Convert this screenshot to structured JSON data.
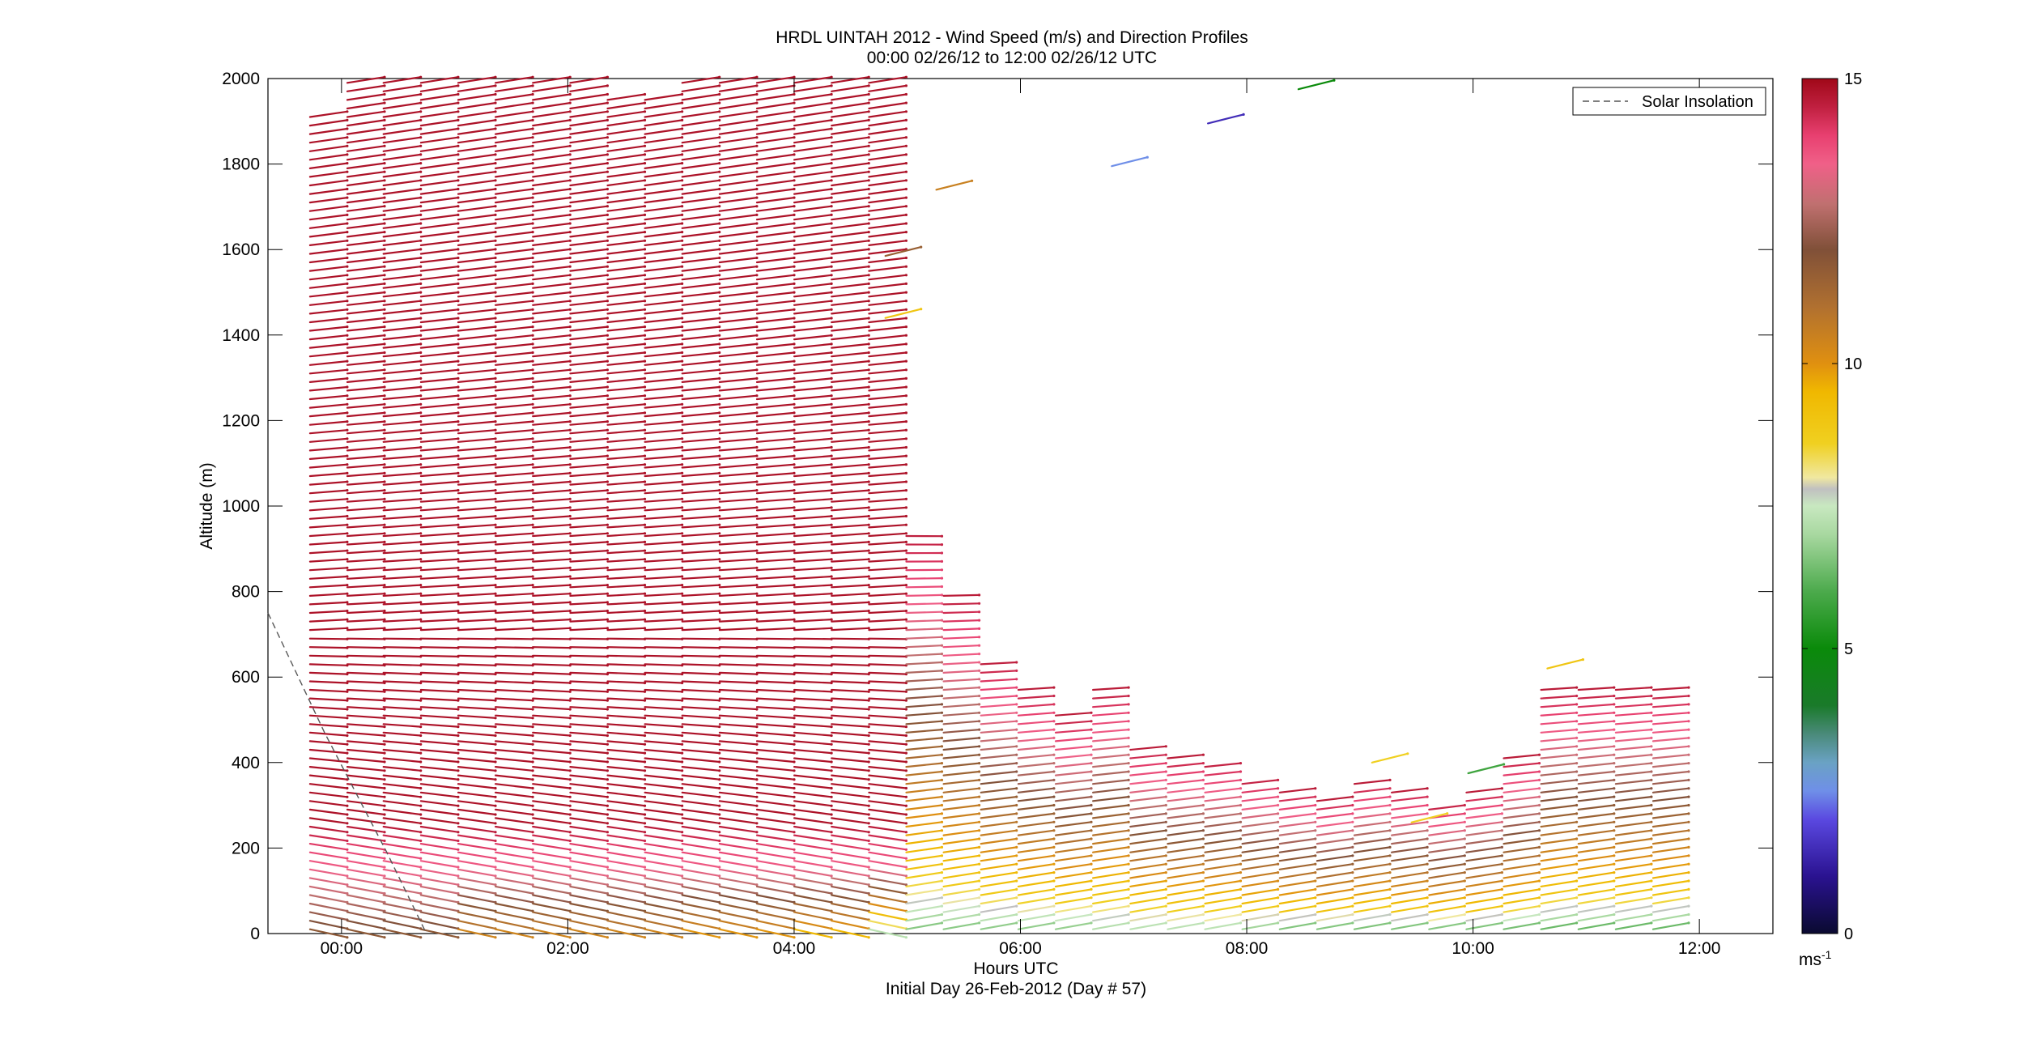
{
  "title_line1": "HRDL UINTAH 2012 - Wind Speed (m/s) and Direction Profiles",
  "title_line2": "00:00 02/26/12 to 12:00 02/26/12  UTC",
  "xlabel": "Hours UTC",
  "xlabel2": "Initial Day 26-Feb-2012 (Day # 57)",
  "ylabel": "Altitude (m)",
  "legend_label": "Solar Insolation",
  "colorbar_unit": "ms",
  "colorbar_unit_sup": "-1",
  "chart_data": {
    "type": "wind-barb-profile",
    "x_unit": "hours UTC",
    "xlim": [
      -0.65,
      12.65
    ],
    "ylim": [
      0,
      2000
    ],
    "clim": [
      0,
      15
    ],
    "x_ticks": [
      0,
      2,
      4,
      6,
      8,
      10,
      12
    ],
    "x_tick_labels": [
      "00:00",
      "02:00",
      "04:00",
      "06:00",
      "08:00",
      "10:00",
      "12:00"
    ],
    "y_ticks": [
      0,
      200,
      400,
      600,
      800,
      1000,
      1200,
      1400,
      1600,
      1800,
      2000
    ],
    "colorbar_ticks": [
      0,
      5,
      10,
      15
    ],
    "legend_position": "top-right",
    "grid": false,
    "colormap": [
      [
        0,
        "#0a0a30"
      ],
      [
        1,
        "#2a1290"
      ],
      [
        2,
        "#5a48e0"
      ],
      [
        2.5,
        "#6f8fe8"
      ],
      [
        3,
        "#6aa2c4"
      ],
      [
        3.5,
        "#4a8a7a"
      ],
      [
        4,
        "#1a7a2a"
      ],
      [
        5,
        "#0a8a0a"
      ],
      [
        6,
        "#4caa4c"
      ],
      [
        7,
        "#a8d8a0"
      ],
      [
        7.5,
        "#c8e8c0"
      ],
      [
        7.8,
        "#c0c0c0"
      ],
      [
        8,
        "#f0e8a0"
      ],
      [
        8.6,
        "#f0d020"
      ],
      [
        9.5,
        "#f0b800"
      ],
      [
        10,
        "#e09010"
      ],
      [
        11,
        "#b07030"
      ],
      [
        12,
        "#805038"
      ],
      [
        12.8,
        "#c07070"
      ],
      [
        13.5,
        "#f06088"
      ],
      [
        14,
        "#e84070"
      ],
      [
        14.5,
        "#c02040"
      ],
      [
        15,
        "#a00818"
      ]
    ],
    "solar_insolation": {
      "x": [
        -0.65,
        -0.15,
        0.4,
        0.75
      ],
      "y": [
        750,
        470,
        190,
        0
      ]
    },
    "profiles": [
      {
        "time": -0.15,
        "top": 1920,
        "surface_speed": 11.5
      },
      {
        "time": 0.18,
        "top": 1990,
        "surface_speed": 11.5
      },
      {
        "time": 0.5,
        "top": 1990,
        "surface_speed": 11.5
      },
      {
        "time": 0.83,
        "top": 1990,
        "surface_speed": 11.5
      },
      {
        "time": 1.16,
        "top": 1990,
        "surface_speed": 10
      },
      {
        "time": 1.49,
        "top": 1990,
        "surface_speed": 10
      },
      {
        "time": 1.82,
        "top": 1990,
        "surface_speed": 10
      },
      {
        "time": 2.15,
        "top": 1990,
        "surface_speed": 10
      },
      {
        "time": 2.48,
        "top": 1950,
        "surface_speed": 10
      },
      {
        "time": 2.81,
        "top": 1950,
        "surface_speed": 10
      },
      {
        "time": 3.14,
        "top": 1990,
        "surface_speed": 9.5
      },
      {
        "time": 3.47,
        "top": 1990,
        "surface_speed": 9.5
      },
      {
        "time": 3.8,
        "top": 1990,
        "surface_speed": 9.5
      },
      {
        "time": 4.13,
        "top": 1990,
        "surface_speed": 9
      },
      {
        "time": 4.46,
        "top": 1990,
        "surface_speed": 9
      },
      {
        "time": 4.79,
        "top": 1990,
        "surface_speed": 6.5
      },
      {
        "time": 5.12,
        "top": 940,
        "surface_speed": 6.5
      },
      {
        "time": 5.45,
        "top": 790,
        "surface_speed": 6.5
      },
      {
        "time": 5.78,
        "top": 640,
        "surface_speed": 6.5
      },
      {
        "time": 6.11,
        "top": 570,
        "surface_speed": 6.5
      },
      {
        "time": 6.44,
        "top": 510,
        "surface_speed": 6.5
      },
      {
        "time": 6.77,
        "top": 570,
        "surface_speed": 7
      },
      {
        "time": 7.1,
        "top": 430,
        "surface_speed": 7
      },
      {
        "time": 7.43,
        "top": 410,
        "surface_speed": 7
      },
      {
        "time": 7.76,
        "top": 400,
        "surface_speed": 7
      },
      {
        "time": 8.09,
        "top": 360,
        "surface_speed": 6.5
      },
      {
        "time": 8.42,
        "top": 330,
        "surface_speed": 6
      },
      {
        "time": 8.75,
        "top": 310,
        "surface_speed": 6
      },
      {
        "time": 9.08,
        "top": 350,
        "surface_speed": 6
      },
      {
        "time": 9.41,
        "top": 330,
        "surface_speed": 6
      },
      {
        "time": 9.74,
        "top": 300,
        "surface_speed": 6
      },
      {
        "time": 10.07,
        "top": 330,
        "surface_speed": 6
      },
      {
        "time": 10.4,
        "top": 410,
        "surface_speed": 6
      },
      {
        "time": 10.73,
        "top": 570,
        "surface_speed": 6
      },
      {
        "time": 11.06,
        "top": 570,
        "surface_speed": 6
      },
      {
        "time": 11.39,
        "top": 570,
        "surface_speed": 6
      },
      {
        "time": 11.72,
        "top": 570,
        "surface_speed": 6
      }
    ],
    "isolated_barbs": [
      {
        "time": 6.95,
        "altitude": 1795,
        "speed": 2.5
      },
      {
        "time": 7.8,
        "altitude": 1895,
        "speed": 1.5
      },
      {
        "time": 8.6,
        "altitude": 1975,
        "speed": 5
      },
      {
        "time": 5.4,
        "altitude": 1740,
        "speed": 10.5
      },
      {
        "time": 4.95,
        "altitude": 1585,
        "speed": 11.5
      },
      {
        "time": 4.95,
        "altitude": 1440,
        "speed": 9
      },
      {
        "time": 10.8,
        "altitude": 620,
        "speed": 9
      },
      {
        "time": 9.25,
        "altitude": 400,
        "speed": 8.6
      },
      {
        "time": 9.6,
        "altitude": 260,
        "speed": 8.6
      },
      {
        "time": 10.1,
        "altitude": 375,
        "speed": 5.8
      }
    ]
  }
}
